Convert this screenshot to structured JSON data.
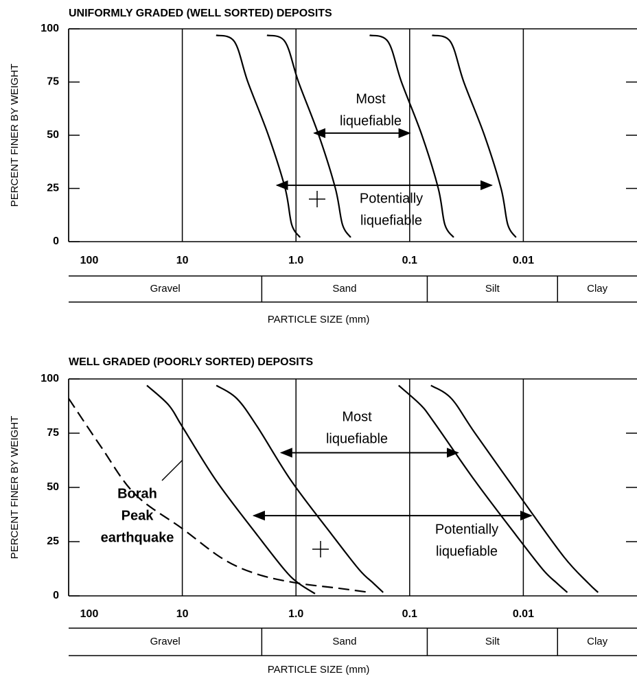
{
  "chart_data": [
    {
      "type": "line",
      "title": "UNIFORMLY GRADED (WELL SORTED) DEPOSITS",
      "ylabel": "PERCENT FINER BY WEIGHT",
      "xlabel": "PARTICLE SIZE  (mm)",
      "xscale": "log",
      "xlim": [
        100,
        0.001
      ],
      "xticks": [
        100,
        10,
        {
          "value": 1,
          "label": "1.0"
        },
        0.1,
        0.01
      ],
      "ylim": [
        0,
        100
      ],
      "yticks": [
        0,
        25,
        50,
        75,
        100
      ],
      "grid": "x",
      "series": [
        {
          "color": "#000000",
          "x": [
            5.04,
            3.48,
            2.65,
            1.75,
            1.245,
            1.09,
            0.92
          ],
          "values": [
            97,
            94,
            75,
            50,
            25,
            8,
            2
          ]
        },
        {
          "color": "#000000",
          "x": [
            1.8,
            1.25,
            0.95,
            0.63,
            0.45,
            0.39,
            0.33
          ],
          "values": [
            97,
            94,
            75,
            50,
            25,
            8,
            2
          ]
        },
        {
          "color": "#000000",
          "x": [
            0.225,
            0.155,
            0.118,
            0.078,
            0.056,
            0.049,
            0.041
          ],
          "values": [
            97,
            94,
            75,
            50,
            25,
            8,
            2
          ]
        },
        {
          "color": "#000000",
          "x": [
            0.0635,
            0.0438,
            0.0334,
            0.022,
            0.0157,
            0.0137,
            0.0116
          ],
          "values": [
            97,
            94,
            75,
            50,
            25,
            8,
            2
          ]
        }
      ],
      "annotations": [
        {
          "lines": [
            "Most",
            "liquefiable"
          ],
          "arrow_x": [
            0.69,
            0.1
          ],
          "arrow_y": 51
        },
        {
          "lines": [
            "Potentially",
            "liquefiable"
          ],
          "arrow_x": [
            1.47,
            0.019
          ],
          "arrow_y": 26.5
        }
      ],
      "bands": [
        {
          "label": "Gravel",
          "from": 100,
          "to": 2
        },
        {
          "label": "Sand",
          "from": 2,
          "to": 0.07
        },
        {
          "label": "Silt",
          "from": 0.07,
          "to": 0.005
        },
        {
          "label": "Clay",
          "from": 0.005,
          "to": 0.001
        }
      ]
    },
    {
      "type": "line",
      "title": "WELL GRADED (POORLY SORTED) DEPOSITS",
      "ylabel": "PERCENT FINER BY WEIGHT",
      "xlabel": "PARTICLE SIZE  (mm)",
      "xscale": "log",
      "xlim": [
        100,
        0.001
      ],
      "xticks": [
        100,
        10,
        {
          "value": 1,
          "label": "1.0"
        },
        0.1,
        0.01
      ],
      "ylim": [
        0,
        100
      ],
      "yticks": [
        0,
        25,
        50,
        75,
        100
      ],
      "grid": "x",
      "series": [
        {
          "color": "#000000",
          "style": "dashed",
          "x": [
            100,
            52.3,
            26.2,
            10,
            4.37,
            2.19,
            1.0,
            0.42,
            0.225
          ],
          "values": [
            91,
            69,
            47,
            31,
            17,
            10,
            6,
            3.5,
            1.6
          ]
        },
        {
          "color": "#000000",
          "x": [
            20.5,
            13.2,
            10,
            5.02,
            2.19,
            1.26,
            0.96,
            0.68
          ],
          "values": [
            97,
            88,
            78,
            53,
            28,
            12,
            6,
            1
          ]
        },
        {
          "color": "#000000",
          "x": [
            5.02,
            3.32,
            2.19,
            1.1,
            0.48,
            0.277,
            0.21,
            0.171
          ],
          "values": [
            97,
            91,
            78,
            53,
            28,
            12,
            6,
            1.6
          ]
        },
        {
          "color": "#000000",
          "x": [
            0.125,
            0.08,
            0.061,
            0.0266,
            0.0116,
            0.0067,
            0.0051,
            0.0041
          ],
          "values": [
            97,
            88,
            80,
            53,
            28,
            12,
            6,
            1.6
          ]
        },
        {
          "color": "#000000",
          "x": [
            0.065,
            0.043,
            0.0266,
            0.0101,
            0.0044,
            0.0027,
            0.0022
          ],
          "values": [
            97,
            91,
            75,
            44,
            18,
            6,
            1.6
          ]
        }
      ],
      "annotations": [
        {
          "lines": [
            "Most",
            "liquefiable"
          ],
          "arrow_x": [
            1.35,
            0.0376
          ],
          "arrow_y": 66
        },
        {
          "lines": [
            "Potentially",
            "liquefiable"
          ],
          "arrow_x": [
            2.35,
            0.0085
          ],
          "arrow_y": 37
        },
        {
          "lines": [
            "Borah",
            "Peak",
            "earthquake"
          ],
          "bold": true
        }
      ],
      "bands": [
        {
          "label": "Gravel",
          "from": 100,
          "to": 2
        },
        {
          "label": "Sand",
          "from": 2,
          "to": 0.07
        },
        {
          "label": "Silt",
          "from": 0.07,
          "to": 0.005
        },
        {
          "label": "Clay",
          "from": 0.005,
          "to": 0.001
        }
      ]
    }
  ]
}
